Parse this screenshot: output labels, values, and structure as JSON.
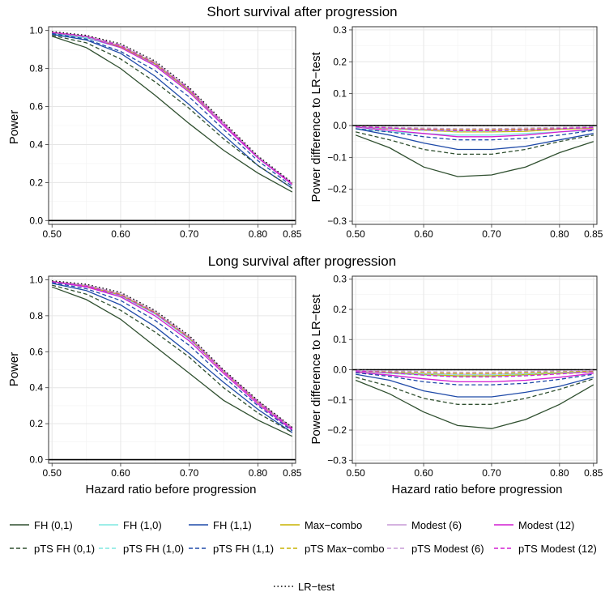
{
  "figure": {
    "title_top": "Short survival after progression",
    "title_bottom": "Long survival after progression",
    "ylabel_power": "Power",
    "ylabel_diff": "Power difference to LR−test",
    "xlabel": "Hazard ratio before progression"
  },
  "chart_data": [
    {
      "panel": "short-power",
      "type": "line",
      "title": "Short survival after progression",
      "xlabel": "",
      "ylabel": "Power",
      "xlim": [
        0.495,
        0.855
      ],
      "ylim": [
        -0.02,
        1.02
      ],
      "xticks": [
        0.5,
        0.6,
        0.7,
        0.8,
        0.85
      ],
      "xtick_labels": [
        "0.50",
        "0.60",
        "0.70",
        "0.80",
        "0.85"
      ],
      "yticks": [
        0,
        0.2,
        0.4,
        0.6,
        0.8,
        1.0
      ],
      "ytick_labels": [
        "0.0",
        "0.2",
        "0.4",
        "0.6",
        "0.8",
        "1.0"
      ],
      "x": [
        0.5,
        0.55,
        0.6,
        0.65,
        0.7,
        0.75,
        0.8,
        0.85
      ],
      "series": [
        {
          "name": "LR−test",
          "values": [
            0.995,
            0.975,
            0.93,
            0.84,
            0.7,
            0.52,
            0.34,
            0.2
          ]
        },
        {
          "name": "FH (0,1)",
          "values": [
            0.97,
            0.91,
            0.8,
            0.66,
            0.51,
            0.37,
            0.25,
            0.15
          ]
        },
        {
          "name": "FH (1,0)",
          "values": [
            0.985,
            0.96,
            0.91,
            0.82,
            0.68,
            0.5,
            0.33,
            0.19
          ]
        },
        {
          "name": "FH (1,1)",
          "values": [
            0.98,
            0.95,
            0.88,
            0.76,
            0.61,
            0.45,
            0.29,
            0.17
          ]
        },
        {
          "name": "Max−combo",
          "values": [
            0.99,
            0.965,
            0.915,
            0.825,
            0.685,
            0.51,
            0.33,
            0.195
          ]
        },
        {
          "name": "Modest (6)",
          "values": [
            0.99,
            0.97,
            0.92,
            0.83,
            0.69,
            0.51,
            0.335,
            0.195
          ]
        },
        {
          "name": "Modest (12)",
          "values": [
            0.99,
            0.965,
            0.91,
            0.815,
            0.675,
            0.5,
            0.33,
            0.19
          ]
        },
        {
          "name": "pTS FH (0,1)",
          "values": [
            0.975,
            0.935,
            0.85,
            0.73,
            0.59,
            0.43,
            0.29,
            0.17
          ]
        },
        {
          "name": "pTS FH (1,0)",
          "values": [
            0.99,
            0.965,
            0.92,
            0.83,
            0.69,
            0.51,
            0.335,
            0.195
          ]
        },
        {
          "name": "pTS FH (1,1)",
          "values": [
            0.985,
            0.955,
            0.89,
            0.79,
            0.65,
            0.48,
            0.315,
            0.18
          ]
        },
        {
          "name": "pTS Max−combo",
          "values": [
            0.99,
            0.97,
            0.925,
            0.83,
            0.695,
            0.515,
            0.335,
            0.195
          ]
        },
        {
          "name": "pTS Modest (6)",
          "values": [
            0.99,
            0.97,
            0.925,
            0.835,
            0.695,
            0.515,
            0.335,
            0.197
          ]
        },
        {
          "name": "pTS Modest (12)",
          "values": [
            0.99,
            0.97,
            0.92,
            0.825,
            0.69,
            0.51,
            0.33,
            0.195
          ]
        }
      ]
    },
    {
      "panel": "short-diff",
      "type": "line",
      "title": "Short survival after progression",
      "xlabel": "",
      "ylabel": "Power difference to LR−test",
      "xlim": [
        0.495,
        0.855
      ],
      "ylim": [
        -0.31,
        0.31
      ],
      "xticks": [
        0.5,
        0.6,
        0.7,
        0.8,
        0.85
      ],
      "xtick_labels": [
        "0.50",
        "0.60",
        "0.70",
        "0.80",
        "0.85"
      ],
      "yticks": [
        -0.3,
        -0.2,
        -0.1,
        0.0,
        0.1,
        0.2,
        0.3
      ],
      "ytick_labels": [
        "−0.3",
        "−0.2",
        "−0.1",
        "0.0",
        "0.1",
        "0.2",
        "0.3"
      ],
      "x": [
        0.5,
        0.55,
        0.6,
        0.65,
        0.7,
        0.75,
        0.8,
        0.85
      ],
      "series": [
        {
          "name": "LR−test",
          "values": [
            0,
            0,
            0,
            0,
            0,
            0,
            0,
            0
          ]
        },
        {
          "name": "FH (0,1)",
          "values": [
            -0.03,
            -0.07,
            -0.13,
            -0.16,
            -0.155,
            -0.13,
            -0.085,
            -0.05
          ]
        },
        {
          "name": "FH (1,0)",
          "values": [
            -0.01,
            -0.02,
            -0.025,
            -0.03,
            -0.03,
            -0.025,
            -0.02,
            -0.015
          ]
        },
        {
          "name": "FH (1,1)",
          "values": [
            -0.01,
            -0.03,
            -0.055,
            -0.075,
            -0.075,
            -0.065,
            -0.045,
            -0.025
          ]
        },
        {
          "name": "Max−combo",
          "values": [
            -0.005,
            -0.01,
            -0.015,
            -0.02,
            -0.02,
            -0.018,
            -0.012,
            -0.008
          ]
        },
        {
          "name": "Modest (6)",
          "values": [
            -0.005,
            -0.008,
            -0.012,
            -0.015,
            -0.015,
            -0.012,
            -0.01,
            -0.006
          ]
        },
        {
          "name": "Modest (12)",
          "values": [
            -0.005,
            -0.015,
            -0.025,
            -0.035,
            -0.035,
            -0.03,
            -0.02,
            -0.012
          ]
        },
        {
          "name": "pTS FH (0,1)",
          "values": [
            -0.02,
            -0.045,
            -0.075,
            -0.09,
            -0.09,
            -0.075,
            -0.05,
            -0.03
          ]
        },
        {
          "name": "pTS FH (1,0)",
          "values": [
            -0.005,
            -0.01,
            -0.015,
            -0.018,
            -0.018,
            -0.015,
            -0.01,
            -0.006
          ]
        },
        {
          "name": "pTS FH (1,1)",
          "values": [
            -0.01,
            -0.02,
            -0.035,
            -0.045,
            -0.045,
            -0.04,
            -0.03,
            -0.015
          ]
        },
        {
          "name": "pTS Max−combo",
          "values": [
            -0.003,
            -0.006,
            -0.01,
            -0.013,
            -0.013,
            -0.011,
            -0.008,
            -0.005
          ]
        },
        {
          "name": "pTS Modest (6)",
          "values": [
            -0.003,
            -0.005,
            -0.008,
            -0.01,
            -0.01,
            -0.008,
            -0.006,
            -0.004
          ]
        },
        {
          "name": "pTS Modest (12)",
          "values": [
            -0.004,
            -0.008,
            -0.013,
            -0.016,
            -0.016,
            -0.014,
            -0.01,
            -0.006
          ]
        }
      ]
    },
    {
      "panel": "long-power",
      "type": "line",
      "title": "Long survival after progression",
      "xlabel": "Hazard ratio before progression",
      "ylabel": "Power",
      "xlim": [
        0.495,
        0.855
      ],
      "ylim": [
        -0.02,
        1.02
      ],
      "xticks": [
        0.5,
        0.6,
        0.7,
        0.8,
        0.85
      ],
      "xtick_labels": [
        "0.50",
        "0.60",
        "0.70",
        "0.80",
        "0.85"
      ],
      "yticks": [
        0,
        0.2,
        0.4,
        0.6,
        0.8,
        1.0
      ],
      "ytick_labels": [
        "0.0",
        "0.2",
        "0.4",
        "0.6",
        "0.8",
        "1.0"
      ],
      "x": [
        0.5,
        0.55,
        0.6,
        0.65,
        0.7,
        0.75,
        0.8,
        0.85
      ],
      "series": [
        {
          "name": "LR−test",
          "values": [
            0.995,
            0.975,
            0.93,
            0.83,
            0.69,
            0.5,
            0.33,
            0.18
          ]
        },
        {
          "name": "FH (0,1)",
          "values": [
            0.96,
            0.89,
            0.78,
            0.63,
            0.48,
            0.33,
            0.22,
            0.13
          ]
        },
        {
          "name": "FH (1,0)",
          "values": [
            0.99,
            0.96,
            0.91,
            0.81,
            0.67,
            0.49,
            0.32,
            0.17
          ]
        },
        {
          "name": "FH (1,1)",
          "values": [
            0.98,
            0.94,
            0.86,
            0.74,
            0.59,
            0.43,
            0.28,
            0.15
          ]
        },
        {
          "name": "Max−combo",
          "values": [
            0.99,
            0.965,
            0.915,
            0.815,
            0.675,
            0.49,
            0.32,
            0.175
          ]
        },
        {
          "name": "Modest (6)",
          "values": [
            0.99,
            0.97,
            0.92,
            0.82,
            0.68,
            0.495,
            0.325,
            0.175
          ]
        },
        {
          "name": "Modest (12)",
          "values": [
            0.99,
            0.96,
            0.905,
            0.8,
            0.66,
            0.48,
            0.31,
            0.165
          ]
        },
        {
          "name": "pTS FH (0,1)",
          "values": [
            0.97,
            0.92,
            0.83,
            0.71,
            0.57,
            0.4,
            0.26,
            0.15
          ]
        },
        {
          "name": "pTS FH (1,0)",
          "values": [
            0.99,
            0.965,
            0.915,
            0.815,
            0.675,
            0.49,
            0.32,
            0.175
          ]
        },
        {
          "name": "pTS FH (1,1)",
          "values": [
            0.985,
            0.95,
            0.885,
            0.775,
            0.635,
            0.46,
            0.3,
            0.16
          ]
        },
        {
          "name": "pTS Max−combo",
          "values": [
            0.99,
            0.97,
            0.92,
            0.82,
            0.68,
            0.495,
            0.325,
            0.178
          ]
        },
        {
          "name": "pTS Modest (6)",
          "values": [
            0.99,
            0.97,
            0.925,
            0.825,
            0.685,
            0.497,
            0.327,
            0.178
          ]
        },
        {
          "name": "pTS Modest (12)",
          "values": [
            0.99,
            0.965,
            0.915,
            0.815,
            0.675,
            0.49,
            0.32,
            0.172
          ]
        }
      ]
    },
    {
      "panel": "long-diff",
      "type": "line",
      "title": "Long survival after progression",
      "xlabel": "Hazard ratio before progression",
      "ylabel": "Power difference to LR−test",
      "xlim": [
        0.495,
        0.855
      ],
      "ylim": [
        -0.31,
        0.31
      ],
      "xticks": [
        0.5,
        0.6,
        0.7,
        0.8,
        0.85
      ],
      "xtick_labels": [
        "0.50",
        "0.60",
        "0.70",
        "0.80",
        "0.85"
      ],
      "yticks": [
        -0.3,
        -0.2,
        -0.1,
        0.0,
        0.1,
        0.2,
        0.3
      ],
      "ytick_labels": [
        "−0.3",
        "−0.2",
        "−0.1",
        "0.0",
        "0.1",
        "0.2",
        "0.3"
      ],
      "x": [
        0.5,
        0.55,
        0.6,
        0.65,
        0.7,
        0.75,
        0.8,
        0.85
      ],
      "series": [
        {
          "name": "LR−test",
          "values": [
            0,
            0,
            0,
            0,
            0,
            0,
            0,
            0
          ]
        },
        {
          "name": "FH (0,1)",
          "values": [
            -0.035,
            -0.08,
            -0.14,
            -0.185,
            -0.195,
            -0.165,
            -0.115,
            -0.05
          ]
        },
        {
          "name": "FH (1,0)",
          "values": [
            -0.005,
            -0.012,
            -0.018,
            -0.022,
            -0.022,
            -0.018,
            -0.012,
            -0.008
          ]
        },
        {
          "name": "FH (1,1)",
          "values": [
            -0.015,
            -0.035,
            -0.07,
            -0.09,
            -0.09,
            -0.075,
            -0.055,
            -0.025
          ]
        },
        {
          "name": "Max−combo",
          "values": [
            -0.005,
            -0.01,
            -0.015,
            -0.02,
            -0.02,
            -0.016,
            -0.012,
            -0.007
          ]
        },
        {
          "name": "Modest (6)",
          "values": [
            -0.005,
            -0.008,
            -0.012,
            -0.015,
            -0.015,
            -0.012,
            -0.009,
            -0.005
          ]
        },
        {
          "name": "Modest (12)",
          "values": [
            -0.008,
            -0.018,
            -0.03,
            -0.04,
            -0.04,
            -0.035,
            -0.025,
            -0.012
          ]
        },
        {
          "name": "pTS FH (0,1)",
          "values": [
            -0.025,
            -0.055,
            -0.095,
            -0.115,
            -0.115,
            -0.095,
            -0.065,
            -0.03
          ]
        },
        {
          "name": "pTS FH (1,0)",
          "values": [
            -0.004,
            -0.009,
            -0.014,
            -0.017,
            -0.017,
            -0.014,
            -0.01,
            -0.005
          ]
        },
        {
          "name": "pTS FH (1,1)",
          "values": [
            -0.01,
            -0.022,
            -0.04,
            -0.05,
            -0.05,
            -0.045,
            -0.032,
            -0.015
          ]
        },
        {
          "name": "pTS Max−combo",
          "values": [
            -0.003,
            -0.006,
            -0.01,
            -0.012,
            -0.012,
            -0.01,
            -0.007,
            -0.004
          ]
        },
        {
          "name": "pTS Modest (6)",
          "values": [
            -0.002,
            -0.004,
            -0.006,
            -0.008,
            -0.008,
            -0.006,
            -0.004,
            -0.002
          ]
        },
        {
          "name": "pTS Modest (12)",
          "values": [
            -0.004,
            -0.01,
            -0.018,
            -0.024,
            -0.024,
            -0.02,
            -0.014,
            -0.007
          ]
        }
      ]
    }
  ],
  "legend": {
    "placement": "bottom",
    "items": [
      {
        "name": "FH (0,1)",
        "color": "#2f4f2f",
        "dash": "solid"
      },
      {
        "name": "FH (1,0)",
        "color": "#7fe8e0",
        "dash": "solid"
      },
      {
        "name": "FH (1,1)",
        "color": "#1f4aa8",
        "dash": "solid"
      },
      {
        "name": "Max−combo",
        "color": "#c8b400",
        "dash": "solid"
      },
      {
        "name": "Modest (6)",
        "color": "#c79ad6",
        "dash": "solid"
      },
      {
        "name": "Modest (12)",
        "color": "#d21ed2",
        "dash": "solid"
      },
      {
        "name": "pTS FH (0,1)",
        "color": "#2f4f2f",
        "dash": "dashed"
      },
      {
        "name": "pTS FH (1,0)",
        "color": "#7fe8e0",
        "dash": "dashed"
      },
      {
        "name": "pTS FH (1,1)",
        "color": "#1f4aa8",
        "dash": "dashed"
      },
      {
        "name": "pTS Max−combo",
        "color": "#c8b400",
        "dash": "dashed"
      },
      {
        "name": "pTS Modest (6)",
        "color": "#c79ad6",
        "dash": "dashed"
      },
      {
        "name": "pTS Modest (12)",
        "color": "#d21ed2",
        "dash": "dashed"
      },
      {
        "name": "LR−test",
        "color": "#000000",
        "dash": "dotted"
      }
    ]
  }
}
